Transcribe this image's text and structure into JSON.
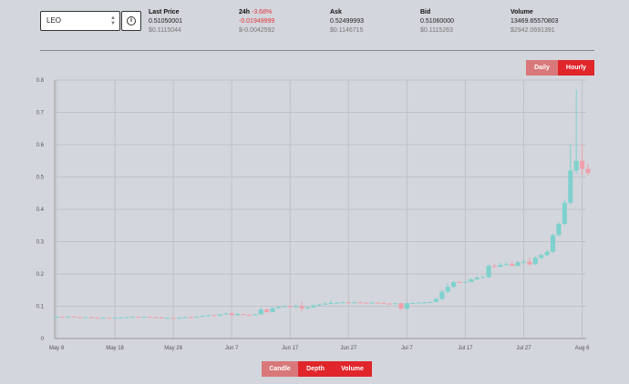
{
  "market": {
    "selected_symbol": "LEO",
    "info_label": "i"
  },
  "stats": {
    "last_price": {
      "label": "Last Price",
      "value": "0.51050001",
      "usd": "$0.1115044"
    },
    "change_24h": {
      "label": "24h",
      "pct": "-3.68%",
      "value": "-0.01949999",
      "usd": "$-0.0042592"
    },
    "ask": {
      "label": "Ask",
      "value": "0.52499993",
      "usd": "$0.1146715"
    },
    "bid": {
      "label": "Bid",
      "value": "0.51060000",
      "usd": "$0.1115263"
    },
    "volume": {
      "label": "Volume",
      "value": "13469.65570803",
      "usd": "$2942.0691391"
    }
  },
  "interval_toggle": {
    "daily": "Daily",
    "hourly": "Hourly",
    "active": "hourly"
  },
  "view_toggle": {
    "candle": "Candle",
    "depth": "Depth",
    "volume": "Volume"
  },
  "colors": {
    "up": "#7fd1ce",
    "down": "#f0a0ab",
    "accent": "#e0262b"
  },
  "chart_data": {
    "type": "candlestick",
    "x_ticks": [
      "May 8",
      "May 18",
      "May 28",
      "Jun 7",
      "Jun 17",
      "Jun 27",
      "Jul 7",
      "Jul 17",
      "Jul 27",
      "Aug 6"
    ],
    "y_ticks": [
      "0",
      "0.1",
      "0.2",
      "0.3",
      "0.4",
      "0.5",
      "0.6",
      "0.7",
      "0.8"
    ],
    "ylim": [
      0,
      0.8
    ],
    "grid": true,
    "candles": [
      [
        "May 8",
        0.065,
        0.067,
        0.068,
        0.064
      ],
      [
        "May 9",
        0.067,
        0.066,
        0.068,
        0.065
      ],
      [
        "May 10",
        0.066,
        0.068,
        0.069,
        0.065
      ],
      [
        "May 11",
        0.068,
        0.066,
        0.069,
        0.065
      ],
      [
        "May 12",
        0.066,
        0.065,
        0.067,
        0.064
      ],
      [
        "May 13",
        0.065,
        0.066,
        0.067,
        0.064
      ],
      [
        "May 14",
        0.066,
        0.064,
        0.067,
        0.063
      ],
      [
        "May 15",
        0.064,
        0.063,
        0.065,
        0.062
      ],
      [
        "May 16",
        0.063,
        0.064,
        0.066,
        0.062
      ],
      [
        "May 17",
        0.064,
        0.063,
        0.065,
        0.062
      ],
      [
        "May 18",
        0.063,
        0.064,
        0.065,
        0.062
      ],
      [
        "May 19",
        0.064,
        0.065,
        0.066,
        0.063
      ],
      [
        "May 20",
        0.065,
        0.066,
        0.067,
        0.064
      ],
      [
        "May 21",
        0.066,
        0.067,
        0.068,
        0.065
      ],
      [
        "May 22",
        0.067,
        0.066,
        0.068,
        0.065
      ],
      [
        "May 23",
        0.066,
        0.067,
        0.068,
        0.065
      ],
      [
        "May 24",
        0.067,
        0.066,
        0.068,
        0.065
      ],
      [
        "May 25",
        0.066,
        0.065,
        0.067,
        0.064
      ],
      [
        "May 26",
        0.065,
        0.063,
        0.066,
        0.062
      ],
      [
        "May 27",
        0.063,
        0.064,
        0.065,
        0.062
      ],
      [
        "May 28",
        0.064,
        0.063,
        0.065,
        0.062
      ],
      [
        "May 29",
        0.063,
        0.064,
        0.066,
        0.062
      ],
      [
        "May 30",
        0.064,
        0.066,
        0.067,
        0.063
      ],
      [
        "May 31",
        0.066,
        0.065,
        0.068,
        0.064
      ],
      [
        "Jun 1",
        0.065,
        0.067,
        0.068,
        0.064
      ],
      [
        "Jun 2",
        0.067,
        0.07,
        0.071,
        0.066
      ],
      [
        "Jun 3",
        0.07,
        0.072,
        0.073,
        0.069
      ],
      [
        "Jun 4",
        0.072,
        0.071,
        0.074,
        0.07
      ],
      [
        "Jun 5",
        0.071,
        0.075,
        0.076,
        0.07
      ],
      [
        "Jun 6",
        0.075,
        0.078,
        0.08,
        0.074
      ],
      [
        "Jun 7",
        0.078,
        0.072,
        0.08,
        0.07
      ],
      [
        "Jun 8",
        0.072,
        0.076,
        0.078,
        0.071
      ],
      [
        "Jun 9",
        0.076,
        0.073,
        0.077,
        0.072
      ],
      [
        "Jun 10",
        0.073,
        0.072,
        0.074,
        0.07
      ],
      [
        "Jun 11",
        0.072,
        0.075,
        0.076,
        0.071
      ],
      [
        "Jun 12",
        0.075,
        0.09,
        0.095,
        0.074
      ],
      [
        "Jun 13",
        0.09,
        0.082,
        0.092,
        0.08
      ],
      [
        "Jun 14",
        0.082,
        0.094,
        0.097,
        0.081
      ],
      [
        "Jun 15",
        0.094,
        0.098,
        0.1,
        0.092
      ],
      [
        "Jun 16",
        0.098,
        0.1,
        0.103,
        0.096
      ],
      [
        "Jun 17",
        0.1,
        0.097,
        0.102,
        0.095
      ],
      [
        "Jun 18",
        0.097,
        0.1,
        0.104,
        0.095
      ],
      [
        "Jun 19",
        0.1,
        0.093,
        0.115,
        0.085
      ],
      [
        "Jun 20",
        0.093,
        0.096,
        0.098,
        0.091
      ],
      [
        "Jun 21",
        0.096,
        0.102,
        0.105,
        0.095
      ],
      [
        "Jun 22",
        0.102,
        0.105,
        0.107,
        0.101
      ],
      [
        "Jun 23",
        0.105,
        0.108,
        0.112,
        0.104
      ],
      [
        "Jun 24",
        0.108,
        0.11,
        0.118,
        0.106
      ],
      [
        "Jun 25",
        0.11,
        0.111,
        0.113,
        0.109
      ],
      [
        "Jun 26",
        0.111,
        0.112,
        0.114,
        0.11
      ],
      [
        "Jun 27",
        0.112,
        0.111,
        0.113,
        0.11
      ],
      [
        "Jun 28",
        0.111,
        0.112,
        0.114,
        0.11
      ],
      [
        "Jun 29",
        0.112,
        0.111,
        0.113,
        0.109
      ],
      [
        "Jun 30",
        0.111,
        0.11,
        0.112,
        0.109
      ],
      [
        "Jul 1",
        0.11,
        0.111,
        0.112,
        0.109
      ],
      [
        "Jul 2",
        0.111,
        0.11,
        0.112,
        0.109
      ],
      [
        "Jul 3",
        0.11,
        0.108,
        0.111,
        0.107
      ],
      [
        "Jul 4",
        0.108,
        0.107,
        0.11,
        0.106
      ],
      [
        "Jul 5",
        0.107,
        0.109,
        0.11,
        0.106
      ],
      [
        "Jul 6",
        0.109,
        0.092,
        0.111,
        0.09
      ],
      [
        "Jul 7",
        0.092,
        0.109,
        0.11,
        0.09
      ],
      [
        "Jul 8",
        0.109,
        0.11,
        0.112,
        0.108
      ],
      [
        "Jul 9",
        0.11,
        0.111,
        0.112,
        0.109
      ],
      [
        "Jul 10",
        0.111,
        0.112,
        0.113,
        0.11
      ],
      [
        "Jul 11",
        0.112,
        0.113,
        0.115,
        0.111
      ],
      [
        "Jul 12",
        0.113,
        0.122,
        0.125,
        0.112
      ],
      [
        "Jul 13",
        0.122,
        0.145,
        0.15,
        0.12
      ],
      [
        "Jul 14",
        0.145,
        0.16,
        0.17,
        0.14
      ],
      [
        "Jul 15",
        0.16,
        0.175,
        0.178,
        0.155
      ],
      [
        "Jul 16",
        0.175,
        0.173,
        0.177,
        0.171
      ],
      [
        "Jul 17",
        0.173,
        0.175,
        0.178,
        0.172
      ],
      [
        "Jul 18",
        0.175,
        0.183,
        0.186,
        0.174
      ],
      [
        "Jul 19",
        0.183,
        0.188,
        0.192,
        0.182
      ],
      [
        "Jul 20",
        0.188,
        0.19,
        0.194,
        0.186
      ],
      [
        "Jul 21",
        0.19,
        0.225,
        0.23,
        0.188
      ],
      [
        "Jul 22",
        0.225,
        0.222,
        0.232,
        0.218
      ],
      [
        "Jul 23",
        0.222,
        0.228,
        0.234,
        0.22
      ],
      [
        "Jul 24",
        0.228,
        0.23,
        0.236,
        0.225
      ],
      [
        "Jul 25",
        0.23,
        0.225,
        0.24,
        0.223
      ],
      [
        "Jul 26",
        0.225,
        0.236,
        0.24,
        0.223
      ],
      [
        "Jul 27",
        0.236,
        0.238,
        0.244,
        0.232
      ],
      [
        "Jul 28",
        0.238,
        0.23,
        0.25,
        0.225
      ],
      [
        "Jul 29",
        0.23,
        0.25,
        0.255,
        0.228
      ],
      [
        "Jul 30",
        0.25,
        0.258,
        0.262,
        0.245
      ],
      [
        "Jul 31",
        0.258,
        0.268,
        0.275,
        0.255
      ],
      [
        "Aug 1",
        0.268,
        0.32,
        0.325,
        0.265
      ],
      [
        "Aug 2",
        0.32,
        0.355,
        0.36,
        0.315
      ],
      [
        "Aug 3",
        0.355,
        0.42,
        0.43,
        0.35
      ],
      [
        "Aug 4",
        0.42,
        0.52,
        0.6,
        0.415
      ],
      [
        "Aug 5",
        0.52,
        0.55,
        0.77,
        0.51
      ],
      [
        "Aug 6",
        0.55,
        0.525,
        0.6,
        0.505
      ],
      [
        "Aug 7",
        0.525,
        0.512,
        0.54,
        0.505
      ]
    ]
  }
}
